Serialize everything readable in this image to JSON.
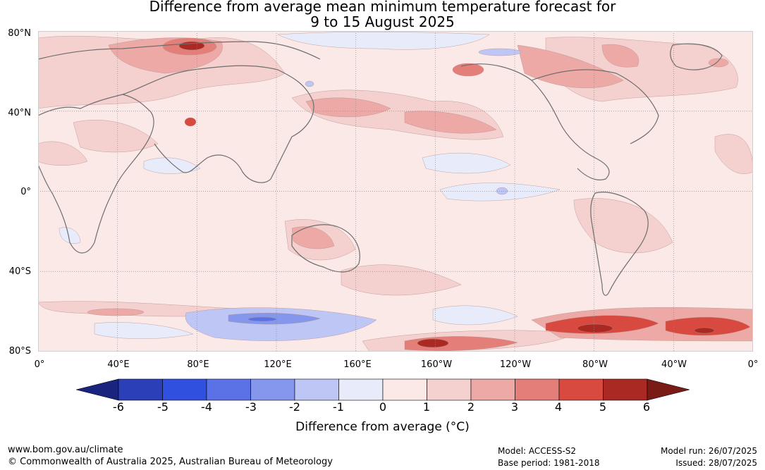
{
  "title": {
    "line1": "Difference from average mean minimum temperature forecast for",
    "line2": "9 to 15 August 2025"
  },
  "map": {
    "lat_labels": [
      "80°N",
      "40°N",
      "0°",
      "40°S",
      "80°S"
    ],
    "lon_labels": [
      "0°",
      "40°E",
      "80°E",
      "120°E",
      "160°E",
      "160°W",
      "120°W",
      "80°W",
      "40°W",
      "0°"
    ]
  },
  "colorbar": {
    "ticks": [
      "-6",
      "-5",
      "-4",
      "-3",
      "-2",
      "-1",
      "0",
      "1",
      "2",
      "3",
      "4",
      "5",
      "6"
    ],
    "colors": [
      "#1a237e",
      "#2b40b8",
      "#3050e0",
      "#5a72e6",
      "#8597ec",
      "#bdc6f4",
      "#e8ecfa",
      "#fbe9e8",
      "#f4d0cf",
      "#eda9a6",
      "#e37f78",
      "#d84a40",
      "#aa2a23",
      "#7a1b16"
    ],
    "label": "Difference from average (°C)"
  },
  "footer": {
    "website": "www.bom.gov.au/climate",
    "copyright": "© Commonwealth of Australia 2025, Australian Bureau of Meteorology",
    "model": "Model: ACCESS-S2",
    "base_period": "Base period: 1981-2018",
    "model_run": "Model run: 26/07/2025",
    "issued": "Issued: 28/07/2025"
  }
}
